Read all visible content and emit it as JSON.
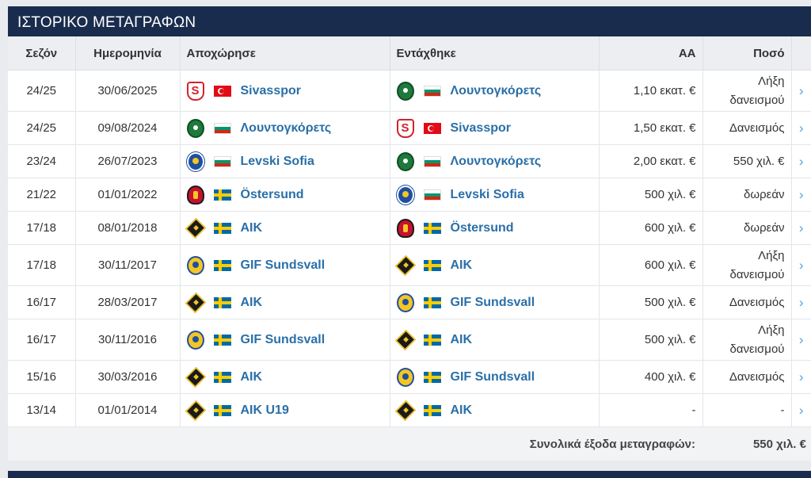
{
  "title": "ΙΣΤΟΡΙΚΟ ΜΕΤΑΓΡΑΦΩΝ",
  "columns": {
    "season": "Σεζόν",
    "date": "Ημερομηνία",
    "left": "Αποχώρησε",
    "joined": "Εντάχθηκε",
    "mv": "ΑΑ",
    "fee": "Ποσό"
  },
  "rows": [
    {
      "season": "24/25",
      "date": "30/06/2025",
      "from": "Sivasspor",
      "from_crest": "sivasspor",
      "from_flag": "tr",
      "to": "Λουντογκόρετς",
      "to_crest": "ludogorets",
      "to_flag": "bg",
      "mv": "1,10 εκατ. €",
      "fee": "Λήξη δανεισμού"
    },
    {
      "season": "24/25",
      "date": "09/08/2024",
      "from": "Λουντογκόρετς",
      "from_crest": "ludogorets",
      "from_flag": "bg",
      "to": "Sivasspor",
      "to_crest": "sivasspor",
      "to_flag": "tr",
      "mv": "1,50 εκατ. €",
      "fee": "Δανεισμός"
    },
    {
      "season": "23/24",
      "date": "26/07/2023",
      "from": "Levski Sofia",
      "from_crest": "levski",
      "from_flag": "bg",
      "to": "Λουντογκόρετς",
      "to_crest": "ludogorets",
      "to_flag": "bg",
      "mv": "2,00 εκατ. €",
      "fee": "550 χιλ. €"
    },
    {
      "season": "21/22",
      "date": "01/01/2022",
      "from": "Östersund",
      "from_crest": "ostersund",
      "from_flag": "se",
      "to": "Levski Sofia",
      "to_crest": "levski",
      "to_flag": "bg",
      "mv": "500 χιλ. €",
      "fee": "δωρεάν"
    },
    {
      "season": "17/18",
      "date": "08/01/2018",
      "from": "AIK",
      "from_crest": "aik",
      "from_flag": "se",
      "to": "Östersund",
      "to_crest": "ostersund",
      "to_flag": "se",
      "mv": "600 χιλ. €",
      "fee": "δωρεάν"
    },
    {
      "season": "17/18",
      "date": "30/11/2017",
      "from": "GIF Sundsvall",
      "from_crest": "gif",
      "from_flag": "se",
      "to": "AIK",
      "to_crest": "aik",
      "to_flag": "se",
      "mv": "600 χιλ. €",
      "fee": "Λήξη δανεισμού"
    },
    {
      "season": "16/17",
      "date": "28/03/2017",
      "from": "AIK",
      "from_crest": "aik",
      "from_flag": "se",
      "to": "GIF Sundsvall",
      "to_crest": "gif",
      "to_flag": "se",
      "mv": "500 χιλ. €",
      "fee": "Δανεισμός"
    },
    {
      "season": "16/17",
      "date": "30/11/2016",
      "from": "GIF Sundsvall",
      "from_crest": "gif",
      "from_flag": "se",
      "to": "AIK",
      "to_crest": "aik",
      "to_flag": "se",
      "mv": "500 χιλ. €",
      "fee": "Λήξη δανεισμού"
    },
    {
      "season": "15/16",
      "date": "30/03/2016",
      "from": "AIK",
      "from_crest": "aik",
      "from_flag": "se",
      "to": "GIF Sundsvall",
      "to_crest": "gif",
      "to_flag": "se",
      "mv": "400 χιλ. €",
      "fee": "Δανεισμός"
    },
    {
      "season": "13/14",
      "date": "01/01/2014",
      "from": "AIK U19",
      "from_crest": "aik",
      "from_flag": "se",
      "to": "AIK",
      "to_crest": "aik",
      "to_flag": "se",
      "mv": "-",
      "fee": "-"
    }
  ],
  "footer": {
    "label": "Συνολικά έξοδα μεταγραφών:",
    "total": "550 χιλ. €"
  },
  "row_chevron": "›",
  "colors": {
    "header_bg": "#1a2c4e",
    "link": "#2a6fa8",
    "chevron": "#4aa3df"
  }
}
